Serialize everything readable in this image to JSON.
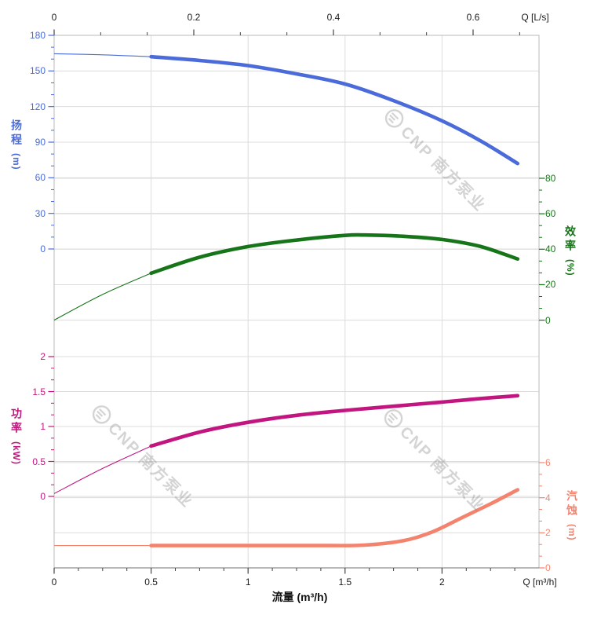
{
  "watermark": {
    "text": "CNP 南方泵业"
  },
  "chart_data": {
    "type": "line",
    "title": "",
    "x_axis_bottom": {
      "unit_label": "Q [m³/h]",
      "axis_title": "流量 (m³/h)",
      "ticks": [
        "0",
        "0.5",
        "1",
        "1.5",
        "2"
      ],
      "tick_values": [
        0,
        0.5,
        1,
        1.5,
        2
      ],
      "range": [
        0,
        2.5
      ],
      "minor_step": 0.125
    },
    "x_axis_top": {
      "unit_label": "Q [L/s]",
      "ticks": [
        "0",
        "0.2",
        "0.4",
        "0.6"
      ],
      "tick_values": [
        0,
        0.2,
        0.4,
        0.6
      ],
      "range": [
        0,
        0.6944
      ],
      "minor_step": 0.066667
    },
    "y_axes": [
      {
        "id": "head",
        "title_text": "扬程",
        "unit": "(m)",
        "side": "left",
        "color": "#4a6bd9",
        "ticks": [
          "180",
          "150",
          "120",
          "90",
          "60",
          "30",
          "0"
        ],
        "tick_values": [
          180,
          150,
          120,
          90,
          60,
          30,
          0
        ],
        "range": [
          0,
          180
        ],
        "minor_step": 10
      },
      {
        "id": "eff",
        "title_text": "效率",
        "unit": "(%)",
        "side": "right",
        "color": "#177519",
        "ticks": [
          "80",
          "60",
          "40",
          "20",
          "0"
        ],
        "tick_values": [
          80,
          60,
          40,
          20,
          0
        ],
        "range": [
          0,
          80
        ],
        "minor_step": 6.6667
      },
      {
        "id": "power",
        "title_text": "功率",
        "unit": "(kW)",
        "side": "left",
        "color": "#c2157f",
        "ticks": [
          "2",
          "1.5",
          "1",
          "0.5",
          "0"
        ],
        "tick_values": [
          2,
          1.5,
          1,
          0.5,
          0
        ],
        "range": [
          0,
          2
        ],
        "minor_step": 0.16667
      },
      {
        "id": "npsh",
        "title_text": "汽蚀",
        "unit": "(m)",
        "side": "right",
        "color": "#f4836e",
        "ticks": [
          "6",
          "4",
          "2",
          "0"
        ],
        "tick_values": [
          6,
          4,
          2,
          0
        ],
        "range": [
          0,
          6
        ],
        "minor_step": 0.66667
      }
    ],
    "series": [
      {
        "id": "head-curve",
        "name": "扬程",
        "axis": "head",
        "color": "#4a6bd9",
        "thick_from": 0.5,
        "points": [
          [
            0,
            164.5
          ],
          [
            0.25,
            163.6
          ],
          [
            0.5,
            162
          ],
          [
            0.75,
            158.8
          ],
          [
            1,
            154.5
          ],
          [
            1.25,
            147.5
          ],
          [
            1.5,
            139
          ],
          [
            1.75,
            125
          ],
          [
            2,
            108
          ],
          [
            2.2,
            91
          ],
          [
            2.39,
            72
          ]
        ]
      },
      {
        "id": "efficiency-curve",
        "name": "效率",
        "axis": "eff",
        "color": "#177519",
        "thick_from": 0.5,
        "points": [
          [
            0,
            0
          ],
          [
            0.25,
            14.5
          ],
          [
            0.5,
            26.5
          ],
          [
            0.75,
            35.5
          ],
          [
            1,
            41.5
          ],
          [
            1.25,
            45.2
          ],
          [
            1.5,
            47.8
          ],
          [
            1.6,
            48
          ],
          [
            1.8,
            47.3
          ],
          [
            2,
            45.5
          ],
          [
            2.2,
            41.5
          ],
          [
            2.39,
            34.5
          ]
        ]
      },
      {
        "id": "power-curve",
        "name": "功率",
        "axis": "power",
        "color": "#c2157f",
        "thick_from": 0.5,
        "points": [
          [
            0,
            0.04
          ],
          [
            0.25,
            0.4
          ],
          [
            0.5,
            0.72
          ],
          [
            0.75,
            0.92
          ],
          [
            1,
            1.06
          ],
          [
            1.25,
            1.16
          ],
          [
            1.5,
            1.23
          ],
          [
            1.75,
            1.29
          ],
          [
            2,
            1.35
          ],
          [
            2.2,
            1.4
          ],
          [
            2.39,
            1.44
          ]
        ]
      },
      {
        "id": "npsh-curve",
        "name": "汽蚀",
        "axis": "npsh",
        "color": "#f4836e",
        "thick_from": 0.5,
        "points": [
          [
            0,
            1.27
          ],
          [
            0.5,
            1.27
          ],
          [
            1,
            1.27
          ],
          [
            1.4,
            1.27
          ],
          [
            1.6,
            1.3
          ],
          [
            1.8,
            1.55
          ],
          [
            1.95,
            2.05
          ],
          [
            2.1,
            2.85
          ],
          [
            2.25,
            3.65
          ],
          [
            2.39,
            4.45
          ]
        ]
      }
    ]
  }
}
